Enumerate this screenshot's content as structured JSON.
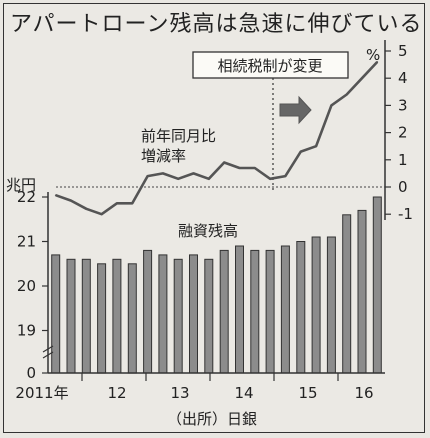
{
  "title": "アパートローン残高は急速に伸びている",
  "chart_data": {
    "type": "bar+line",
    "title": "アパートローン残高は急速に伸びている",
    "source": "（出所）日銀",
    "x_ticks": [
      "2011年",
      "12",
      "13",
      "14",
      "15",
      "16"
    ],
    "bars": {
      "name": "融資残高",
      "unit": "兆円",
      "values": [
        20.7,
        20.6,
        20.6,
        20.5,
        20.6,
        20.5,
        20.8,
        20.7,
        20.6,
        20.7,
        20.6,
        20.8,
        20.9,
        20.8,
        20.8,
        20.9,
        21.0,
        21.1,
        21.1,
        21.6,
        21.7,
        22.0
      ],
      "y_ticks": [
        "22",
        "21",
        "20",
        "19",
        "0"
      ]
    },
    "line": {
      "name": "前年同月比\n増減率",
      "unit": "%",
      "values": [
        -0.3,
        -0.5,
        -0.8,
        -1.0,
        -0.6,
        -0.6,
        0.4,
        0.5,
        0.3,
        0.5,
        0.3,
        0.9,
        0.7,
        0.7,
        0.3,
        0.4,
        1.3,
        1.5,
        3.0,
        3.4,
        4.0,
        4.6
      ],
      "y_ticks": [
        "5",
        "4",
        "3",
        "2",
        "1",
        "0",
        "-1"
      ],
      "ylim": [
        -1,
        5
      ]
    },
    "annotation": "相続税制が変更",
    "labels": {
      "left_unit": "兆円",
      "right_unit": "%",
      "line_label_1": "前年同月比",
      "line_label_2": "増減率",
      "bar_label": "融資残高"
    }
  }
}
